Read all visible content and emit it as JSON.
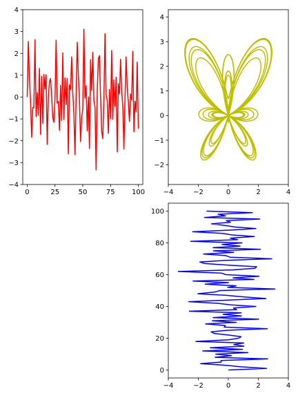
{
  "chart_data": [
    {
      "type": "line",
      "panel": "top-left",
      "color": "#ff0000",
      "series_shape": "sum of two sines (butterfly x-coordinate) sampled at t = 0..100",
      "x_from": 0,
      "x_to": 100,
      "xlim": [
        -4,
        104
      ],
      "ylim": [
        -4,
        4
      ],
      "xticks": [
        0,
        25,
        50,
        75,
        100
      ],
      "yticks": [
        -4,
        -3,
        -2,
        -1,
        0,
        1,
        2,
        3,
        4
      ],
      "x_tick_labels": [
        "0",
        "25",
        "50",
        "75",
        "100"
      ],
      "y_tick_labels": [
        "−4",
        "−3",
        "−2",
        "−1",
        "0",
        "1",
        "2",
        "3",
        "4"
      ],
      "xlabel": "",
      "ylabel": "",
      "title": "",
      "grid": false,
      "legend": "none"
    },
    {
      "type": "line",
      "panel": "top-right",
      "color": "#bfbf00",
      "series_shape": "butterfly curve x(t) vs y(t)",
      "xlim": [
        -4,
        4
      ],
      "ylim": [
        -2.8,
        4.3
      ],
      "xticks": [
        -4,
        -2,
        0,
        2,
        4
      ],
      "yticks": [
        -2,
        -1,
        0,
        1,
        2,
        3,
        4
      ],
      "x_tick_labels": [
        "−4",
        "−2",
        "0",
        "2",
        "4"
      ],
      "y_tick_labels": [
        "−2",
        "−1",
        "0",
        "1",
        "2",
        "3",
        "4"
      ],
      "xlabel": "",
      "ylabel": "",
      "title": "",
      "grid": false,
      "legend": "none"
    },
    {
      "type": "line",
      "panel": "bottom-right",
      "color": "#0000ff",
      "series_shape": "x values (same as top-left series) plotted against sample index 0..100 on the y-axis",
      "y_from": 0,
      "y_to": 100,
      "xlim": [
        -4,
        4
      ],
      "ylim": [
        -5,
        105
      ],
      "xticks": [
        -4,
        -2,
        0,
        2,
        4
      ],
      "yticks": [
        0,
        20,
        40,
        60,
        80,
        100
      ],
      "x_tick_labels": [
        "−4",
        "−2",
        "0",
        "2",
        "4"
      ],
      "y_tick_labels": [
        "0",
        "20",
        "40",
        "60",
        "80",
        "100"
      ],
      "xlabel": "",
      "ylabel": "",
      "title": "",
      "grid": false,
      "legend": "none"
    }
  ]
}
